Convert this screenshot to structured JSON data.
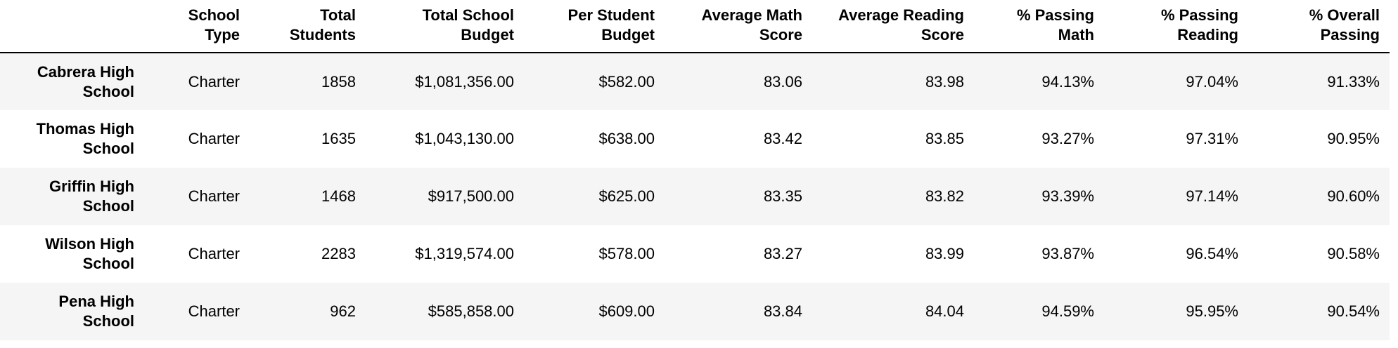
{
  "table": {
    "index_header": "",
    "columns": [
      "School Type",
      "Total Students",
      "Total School Budget",
      "Per Student Budget",
      "Average Math Score",
      "Average Reading Score",
      "% Passing Math",
      "% Passing Reading",
      "% Overall Passing"
    ],
    "rows": [
      {
        "school": "Cabrera High School",
        "cells": [
          "Charter",
          "1858",
          "$1,081,356.00",
          "$582.00",
          "83.06",
          "83.98",
          "94.13%",
          "97.04%",
          "91.33%"
        ]
      },
      {
        "school": "Thomas High School",
        "cells": [
          "Charter",
          "1635",
          "$1,043,130.00",
          "$638.00",
          "83.42",
          "83.85",
          "93.27%",
          "97.31%",
          "90.95%"
        ]
      },
      {
        "school": "Griffin High School",
        "cells": [
          "Charter",
          "1468",
          "$917,500.00",
          "$625.00",
          "83.35",
          "83.82",
          "93.39%",
          "97.14%",
          "90.60%"
        ]
      },
      {
        "school": "Wilson High School",
        "cells": [
          "Charter",
          "2283",
          "$1,319,574.00",
          "$578.00",
          "83.27",
          "83.99",
          "93.87%",
          "96.54%",
          "90.58%"
        ]
      },
      {
        "school": "Pena High School",
        "cells": [
          "Charter",
          "962",
          "$585,858.00",
          "$609.00",
          "83.84",
          "84.04",
          "94.59%",
          "95.95%",
          "90.54%"
        ]
      }
    ]
  }
}
